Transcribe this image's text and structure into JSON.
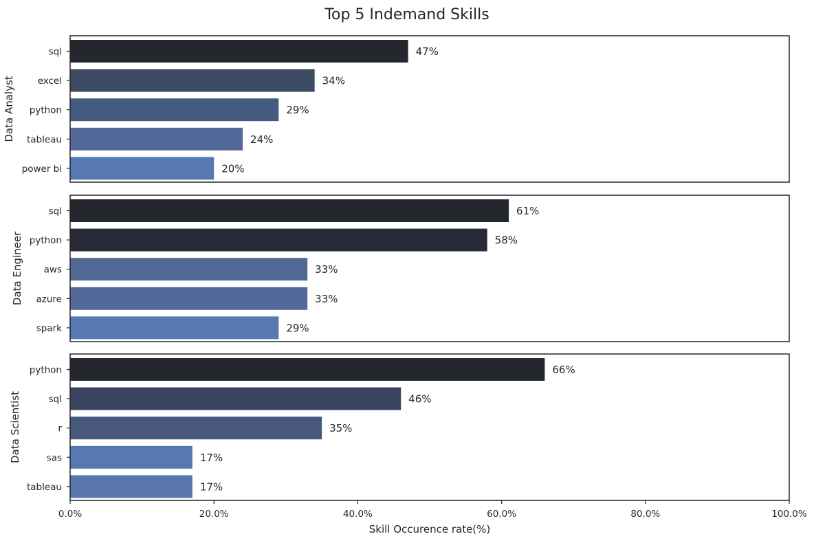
{
  "chart_data": {
    "type": "bar",
    "orientation": "horizontal",
    "title": "Top 5 Indemand Skills",
    "xlabel": "Skill Occurence rate(%)",
    "xlim": [
      0,
      100
    ],
    "xticks": [
      "0.0%",
      "20.0%",
      "40.0%",
      "60.0%",
      "80.0%",
      "100.0%"
    ],
    "grid": false,
    "legend": "none",
    "panels": [
      {
        "ylabel": "Data Analyst",
        "categories": [
          "sql",
          "excel",
          "python",
          "tableau",
          "power bi"
        ],
        "values": [
          47,
          34,
          29,
          24,
          20
        ],
        "value_labels": [
          "47%",
          "34%",
          "29%",
          "24%",
          "20%"
        ],
        "colors": [
          "#25272e",
          "#3d4b63",
          "#455a7f",
          "#52699a",
          "#5779b2"
        ]
      },
      {
        "ylabel": "Data Engineer",
        "categories": [
          "sql",
          "python",
          "aws",
          "azure",
          "spark"
        ],
        "values": [
          61,
          58,
          33,
          33,
          29
        ],
        "value_labels": [
          "61%",
          "58%",
          "33%",
          "33%",
          "29%"
        ],
        "colors": [
          "#25272e",
          "#282b35",
          "#4f6894",
          "#52699a",
          "#5779b2"
        ]
      },
      {
        "ylabel": "Data Scientist",
        "categories": [
          "python",
          "sql",
          "r",
          "sas",
          "tableau"
        ],
        "values": [
          66,
          46,
          35,
          17,
          17
        ],
        "value_labels": [
          "66%",
          "46%",
          "35%",
          "17%",
          "17%"
        ],
        "colors": [
          "#25272e",
          "#3a4660",
          "#46597c",
          "#5779b2",
          "#5876ab"
        ]
      }
    ]
  }
}
